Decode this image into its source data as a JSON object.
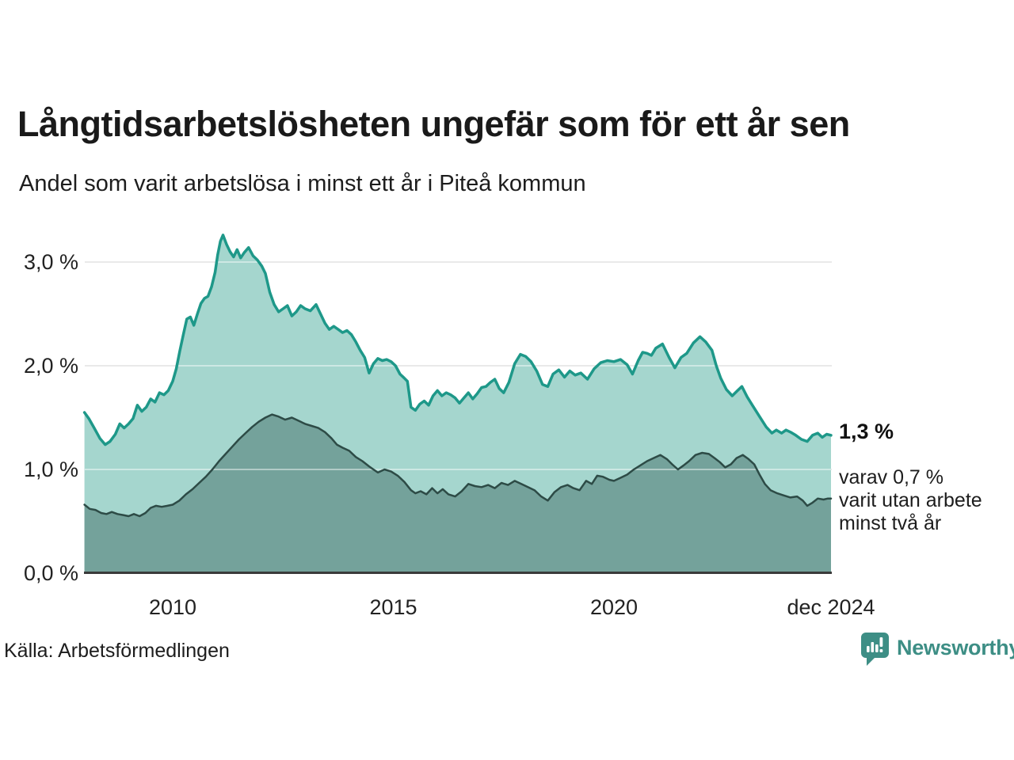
{
  "header": {
    "title": "Långtidsarbetslösheten ungefär som för ett år sen",
    "subtitle": "Andel som varit arbetslösa i minst ett år i Piteå kommun"
  },
  "chart_data": {
    "type": "area",
    "title": "Långtidsarbetslösheten ungefär som för ett år sen",
    "subtitle": "Andel som varit arbetslösa i minst ett år i Piteå kommun",
    "unit": "%",
    "x_range": [
      2008.0,
      2024.92
    ],
    "ylim": [
      0,
      3.4
    ],
    "grid": true,
    "y_axis": {
      "ticks": [
        {
          "label": "3,0 %",
          "value": 3.0
        },
        {
          "label": "2,0 %",
          "value": 2.0
        },
        {
          "label": "1,0 %",
          "value": 1.0
        },
        {
          "label": "0,0 %",
          "value": 0.0
        }
      ]
    },
    "x_axis": {
      "ticks": [
        {
          "label": "2010",
          "year": 2010
        },
        {
          "label": "2015",
          "year": 2015
        },
        {
          "label": "2020",
          "year": 2020
        },
        {
          "label": "dec 2024",
          "year": 2024.92
        }
      ]
    },
    "series": [
      {
        "name": "arbetslösa minst ett år",
        "stroke": "#1e9889",
        "fill": "#a5d6ce",
        "stroke_width": 3.5,
        "points": [
          [
            2008.0,
            1.55
          ],
          [
            2008.1,
            1.49
          ],
          [
            2008.22,
            1.4
          ],
          [
            2008.35,
            1.3
          ],
          [
            2008.47,
            1.24
          ],
          [
            2008.58,
            1.27
          ],
          [
            2008.7,
            1.34
          ],
          [
            2008.8,
            1.44
          ],
          [
            2008.9,
            1.4
          ],
          [
            2009.0,
            1.44
          ],
          [
            2009.1,
            1.49
          ],
          [
            2009.2,
            1.62
          ],
          [
            2009.3,
            1.56
          ],
          [
            2009.4,
            1.6
          ],
          [
            2009.5,
            1.68
          ],
          [
            2009.6,
            1.65
          ],
          [
            2009.7,
            1.74
          ],
          [
            2009.8,
            1.72
          ],
          [
            2009.9,
            1.76
          ],
          [
            2010.0,
            1.85
          ],
          [
            2010.08,
            1.97
          ],
          [
            2010.16,
            2.14
          ],
          [
            2010.24,
            2.3
          ],
          [
            2010.32,
            2.45
          ],
          [
            2010.4,
            2.47
          ],
          [
            2010.48,
            2.39
          ],
          [
            2010.56,
            2.5
          ],
          [
            2010.64,
            2.6
          ],
          [
            2010.72,
            2.65
          ],
          [
            2010.8,
            2.67
          ],
          [
            2010.88,
            2.76
          ],
          [
            2010.96,
            2.9
          ],
          [
            2011.02,
            3.07
          ],
          [
            2011.08,
            3.2
          ],
          [
            2011.14,
            3.26
          ],
          [
            2011.22,
            3.17
          ],
          [
            2011.3,
            3.1
          ],
          [
            2011.38,
            3.05
          ],
          [
            2011.46,
            3.12
          ],
          [
            2011.54,
            3.04
          ],
          [
            2011.62,
            3.09
          ],
          [
            2011.72,
            3.14
          ],
          [
            2011.82,
            3.06
          ],
          [
            2011.92,
            3.02
          ],
          [
            2012.02,
            2.96
          ],
          [
            2012.1,
            2.89
          ],
          [
            2012.2,
            2.71
          ],
          [
            2012.3,
            2.59
          ],
          [
            2012.4,
            2.52
          ],
          [
            2012.5,
            2.55
          ],
          [
            2012.6,
            2.58
          ],
          [
            2012.7,
            2.48
          ],
          [
            2012.8,
            2.52
          ],
          [
            2012.9,
            2.58
          ],
          [
            2013.0,
            2.55
          ],
          [
            2013.12,
            2.53
          ],
          [
            2013.25,
            2.59
          ],
          [
            2013.35,
            2.5
          ],
          [
            2013.45,
            2.41
          ],
          [
            2013.55,
            2.35
          ],
          [
            2013.65,
            2.38
          ],
          [
            2013.75,
            2.35
          ],
          [
            2013.85,
            2.32
          ],
          [
            2013.95,
            2.34
          ],
          [
            2014.05,
            2.3
          ],
          [
            2014.15,
            2.23
          ],
          [
            2014.25,
            2.15
          ],
          [
            2014.35,
            2.08
          ],
          [
            2014.45,
            1.93
          ],
          [
            2014.55,
            2.02
          ],
          [
            2014.65,
            2.07
          ],
          [
            2014.75,
            2.05
          ],
          [
            2014.85,
            2.06
          ],
          [
            2014.95,
            2.04
          ],
          [
            2015.05,
            2.0
          ],
          [
            2015.15,
            1.92
          ],
          [
            2015.25,
            1.88
          ],
          [
            2015.32,
            1.85
          ],
          [
            2015.4,
            1.6
          ],
          [
            2015.5,
            1.57
          ],
          [
            2015.6,
            1.63
          ],
          [
            2015.7,
            1.66
          ],
          [
            2015.8,
            1.62
          ],
          [
            2015.9,
            1.71
          ],
          [
            2016.0,
            1.76
          ],
          [
            2016.1,
            1.71
          ],
          [
            2016.2,
            1.74
          ],
          [
            2016.3,
            1.72
          ],
          [
            2016.4,
            1.69
          ],
          [
            2016.5,
            1.64
          ],
          [
            2016.6,
            1.69
          ],
          [
            2016.7,
            1.74
          ],
          [
            2016.8,
            1.68
          ],
          [
            2016.9,
            1.73
          ],
          [
            2017.0,
            1.79
          ],
          [
            2017.1,
            1.8
          ],
          [
            2017.2,
            1.84
          ],
          [
            2017.3,
            1.87
          ],
          [
            2017.4,
            1.78
          ],
          [
            2017.5,
            1.74
          ],
          [
            2017.62,
            1.84
          ],
          [
            2017.75,
            2.02
          ],
          [
            2017.88,
            2.11
          ],
          [
            2018.0,
            2.09
          ],
          [
            2018.12,
            2.04
          ],
          [
            2018.25,
            1.95
          ],
          [
            2018.38,
            1.82
          ],
          [
            2018.5,
            1.8
          ],
          [
            2018.62,
            1.92
          ],
          [
            2018.75,
            1.96
          ],
          [
            2018.88,
            1.89
          ],
          [
            2019.0,
            1.95
          ],
          [
            2019.12,
            1.91
          ],
          [
            2019.25,
            1.93
          ],
          [
            2019.4,
            1.87
          ],
          [
            2019.55,
            1.97
          ],
          [
            2019.7,
            2.03
          ],
          [
            2019.85,
            2.05
          ],
          [
            2020.0,
            2.04
          ],
          [
            2020.15,
            2.06
          ],
          [
            2020.3,
            2.01
          ],
          [
            2020.42,
            1.92
          ],
          [
            2020.55,
            2.05
          ],
          [
            2020.65,
            2.13
          ],
          [
            2020.75,
            2.12
          ],
          [
            2020.85,
            2.1
          ],
          [
            2020.95,
            2.17
          ],
          [
            2021.1,
            2.21
          ],
          [
            2021.25,
            2.08
          ],
          [
            2021.38,
            1.98
          ],
          [
            2021.52,
            2.08
          ],
          [
            2021.65,
            2.12
          ],
          [
            2021.8,
            2.22
          ],
          [
            2021.95,
            2.28
          ],
          [
            2022.08,
            2.23
          ],
          [
            2022.22,
            2.15
          ],
          [
            2022.32,
            2.0
          ],
          [
            2022.42,
            1.88
          ],
          [
            2022.55,
            1.77
          ],
          [
            2022.68,
            1.71
          ],
          [
            2022.8,
            1.76
          ],
          [
            2022.9,
            1.8
          ],
          [
            2023.02,
            1.7
          ],
          [
            2023.15,
            1.61
          ],
          [
            2023.3,
            1.51
          ],
          [
            2023.45,
            1.41
          ],
          [
            2023.58,
            1.35
          ],
          [
            2023.68,
            1.38
          ],
          [
            2023.8,
            1.35
          ],
          [
            2023.9,
            1.38
          ],
          [
            2024.0,
            1.36
          ],
          [
            2024.12,
            1.33
          ],
          [
            2024.25,
            1.29
          ],
          [
            2024.38,
            1.27
          ],
          [
            2024.5,
            1.33
          ],
          [
            2024.62,
            1.35
          ],
          [
            2024.72,
            1.31
          ],
          [
            2024.82,
            1.34
          ],
          [
            2024.92,
            1.33
          ]
        ]
      },
      {
        "name": "arbetslösa minst två år",
        "stroke": "#2d4b46",
        "fill": "#74a29b",
        "stroke_width": 2.5,
        "points": [
          [
            2008.0,
            0.66
          ],
          [
            2008.12,
            0.62
          ],
          [
            2008.25,
            0.61
          ],
          [
            2008.38,
            0.58
          ],
          [
            2008.5,
            0.57
          ],
          [
            2008.62,
            0.59
          ],
          [
            2008.75,
            0.57
          ],
          [
            2008.88,
            0.56
          ],
          [
            2009.0,
            0.55
          ],
          [
            2009.12,
            0.57
          ],
          [
            2009.25,
            0.55
          ],
          [
            2009.38,
            0.58
          ],
          [
            2009.5,
            0.63
          ],
          [
            2009.62,
            0.65
          ],
          [
            2009.75,
            0.64
          ],
          [
            2009.88,
            0.65
          ],
          [
            2010.0,
            0.66
          ],
          [
            2010.15,
            0.7
          ],
          [
            2010.3,
            0.76
          ],
          [
            2010.45,
            0.81
          ],
          [
            2010.6,
            0.87
          ],
          [
            2010.75,
            0.93
          ],
          [
            2010.9,
            1.0
          ],
          [
            2011.05,
            1.08
          ],
          [
            2011.2,
            1.15
          ],
          [
            2011.35,
            1.22
          ],
          [
            2011.5,
            1.29
          ],
          [
            2011.65,
            1.35
          ],
          [
            2011.8,
            1.41
          ],
          [
            2011.95,
            1.46
          ],
          [
            2012.1,
            1.5
          ],
          [
            2012.25,
            1.53
          ],
          [
            2012.4,
            1.51
          ],
          [
            2012.55,
            1.48
          ],
          [
            2012.7,
            1.5
          ],
          [
            2012.85,
            1.47
          ],
          [
            2013.0,
            1.44
          ],
          [
            2013.15,
            1.42
          ],
          [
            2013.3,
            1.4
          ],
          [
            2013.45,
            1.36
          ],
          [
            2013.6,
            1.3
          ],
          [
            2013.72,
            1.24
          ],
          [
            2013.85,
            1.21
          ],
          [
            2014.0,
            1.18
          ],
          [
            2014.15,
            1.12
          ],
          [
            2014.3,
            1.08
          ],
          [
            2014.45,
            1.03
          ],
          [
            2014.55,
            1.0
          ],
          [
            2014.65,
            0.97
          ],
          [
            2014.8,
            1.0
          ],
          [
            2014.95,
            0.98
          ],
          [
            2015.1,
            0.94
          ],
          [
            2015.25,
            0.88
          ],
          [
            2015.4,
            0.8
          ],
          [
            2015.5,
            0.77
          ],
          [
            2015.62,
            0.79
          ],
          [
            2015.75,
            0.76
          ],
          [
            2015.88,
            0.82
          ],
          [
            2016.0,
            0.77
          ],
          [
            2016.12,
            0.81
          ],
          [
            2016.25,
            0.76
          ],
          [
            2016.4,
            0.74
          ],
          [
            2016.55,
            0.79
          ],
          [
            2016.7,
            0.86
          ],
          [
            2016.85,
            0.84
          ],
          [
            2017.0,
            0.83
          ],
          [
            2017.15,
            0.85
          ],
          [
            2017.3,
            0.82
          ],
          [
            2017.45,
            0.87
          ],
          [
            2017.6,
            0.85
          ],
          [
            2017.75,
            0.89
          ],
          [
            2017.9,
            0.86
          ],
          [
            2018.05,
            0.83
          ],
          [
            2018.2,
            0.8
          ],
          [
            2018.35,
            0.74
          ],
          [
            2018.5,
            0.7
          ],
          [
            2018.65,
            0.78
          ],
          [
            2018.8,
            0.83
          ],
          [
            2018.95,
            0.85
          ],
          [
            2019.08,
            0.82
          ],
          [
            2019.22,
            0.8
          ],
          [
            2019.37,
            0.89
          ],
          [
            2019.5,
            0.86
          ],
          [
            2019.62,
            0.94
          ],
          [
            2019.75,
            0.93
          ],
          [
            2019.9,
            0.9
          ],
          [
            2020.0,
            0.89
          ],
          [
            2020.15,
            0.92
          ],
          [
            2020.3,
            0.95
          ],
          [
            2020.45,
            1.0
          ],
          [
            2020.6,
            1.04
          ],
          [
            2020.75,
            1.08
          ],
          [
            2020.9,
            1.11
          ],
          [
            2021.05,
            1.14
          ],
          [
            2021.2,
            1.1
          ],
          [
            2021.32,
            1.05
          ],
          [
            2021.45,
            1.0
          ],
          [
            2021.58,
            1.04
          ],
          [
            2021.7,
            1.08
          ],
          [
            2021.85,
            1.14
          ],
          [
            2022.0,
            1.16
          ],
          [
            2022.15,
            1.15
          ],
          [
            2022.28,
            1.11
          ],
          [
            2022.4,
            1.07
          ],
          [
            2022.52,
            1.02
          ],
          [
            2022.65,
            1.05
          ],
          [
            2022.78,
            1.11
          ],
          [
            2022.92,
            1.14
          ],
          [
            2023.05,
            1.1
          ],
          [
            2023.18,
            1.05
          ],
          [
            2023.3,
            0.95
          ],
          [
            2023.42,
            0.86
          ],
          [
            2023.55,
            0.8
          ],
          [
            2023.7,
            0.77
          ],
          [
            2023.85,
            0.75
          ],
          [
            2024.0,
            0.73
          ],
          [
            2024.15,
            0.74
          ],
          [
            2024.28,
            0.7
          ],
          [
            2024.38,
            0.65
          ],
          [
            2024.5,
            0.68
          ],
          [
            2024.62,
            0.72
          ],
          [
            2024.75,
            0.71
          ],
          [
            2024.85,
            0.72
          ],
          [
            2024.92,
            0.72
          ]
        ]
      }
    ],
    "annotations": {
      "value_label": "1,3 %",
      "detail": "varav 0,7 %\nvarit utan arbete\nminst två år"
    },
    "legend_position": "none"
  },
  "footer": {
    "source": "Källa: Arbetsförmedlingen",
    "brand": "Newsworthy"
  },
  "colors": {
    "series1_stroke": "#1e9889",
    "series1_fill": "#a5d6ce",
    "series2_stroke": "#2d4b46",
    "series2_fill": "#74a29b",
    "gridline": "#d8d8d8",
    "axis_line": "#3a3a3a",
    "brand_teal": "#3d8e85",
    "text": "#1a1a1a"
  }
}
